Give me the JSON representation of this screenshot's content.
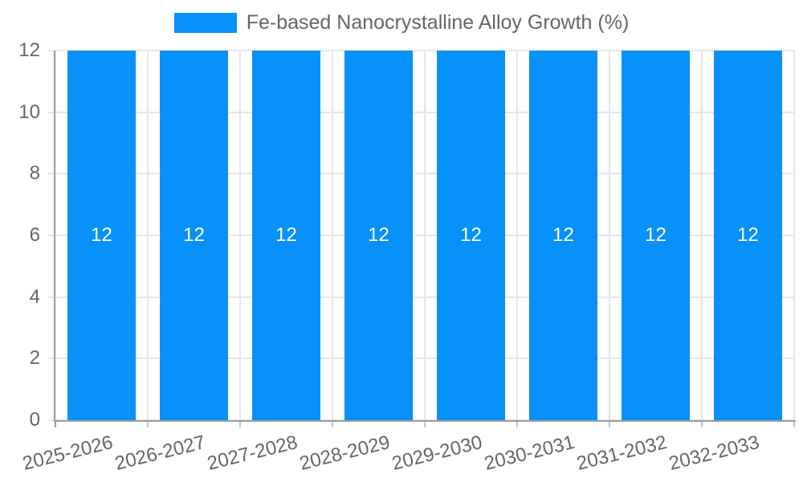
{
  "chart_data": {
    "type": "bar",
    "title": "Fe-based Nanocrystalline Alloy Growth (%)",
    "categories": [
      "2025-2026",
      "2026-2027",
      "2027-2028",
      "2028-2029",
      "2029-2030",
      "2030-2031",
      "2031-2032",
      "2032-2033"
    ],
    "series": [
      {
        "name": "Fe-based Nanocrystalline Alloy Growth (%)",
        "values": [
          12,
          12,
          12,
          12,
          12,
          12,
          12,
          12
        ]
      }
    ],
    "bar_labels": [
      "12",
      "12",
      "12",
      "12",
      "12",
      "12",
      "12",
      "12"
    ],
    "xlabel": "",
    "ylabel": "",
    "ylim": [
      0,
      12
    ],
    "yticks": [
      0,
      2,
      4,
      6,
      8,
      10,
      12
    ],
    "grid": true,
    "legend_position": "top",
    "colors": {
      "bar": "#0791F9",
      "bar_label": "#FFFFFF",
      "grid": "#E6E6E6",
      "axis_border": "#9E9E9E",
      "x_tick_mark": "#C2C2C2",
      "tick_label": "#666666",
      "legend_text": "#666666",
      "background": "#FFFFFF"
    }
  }
}
